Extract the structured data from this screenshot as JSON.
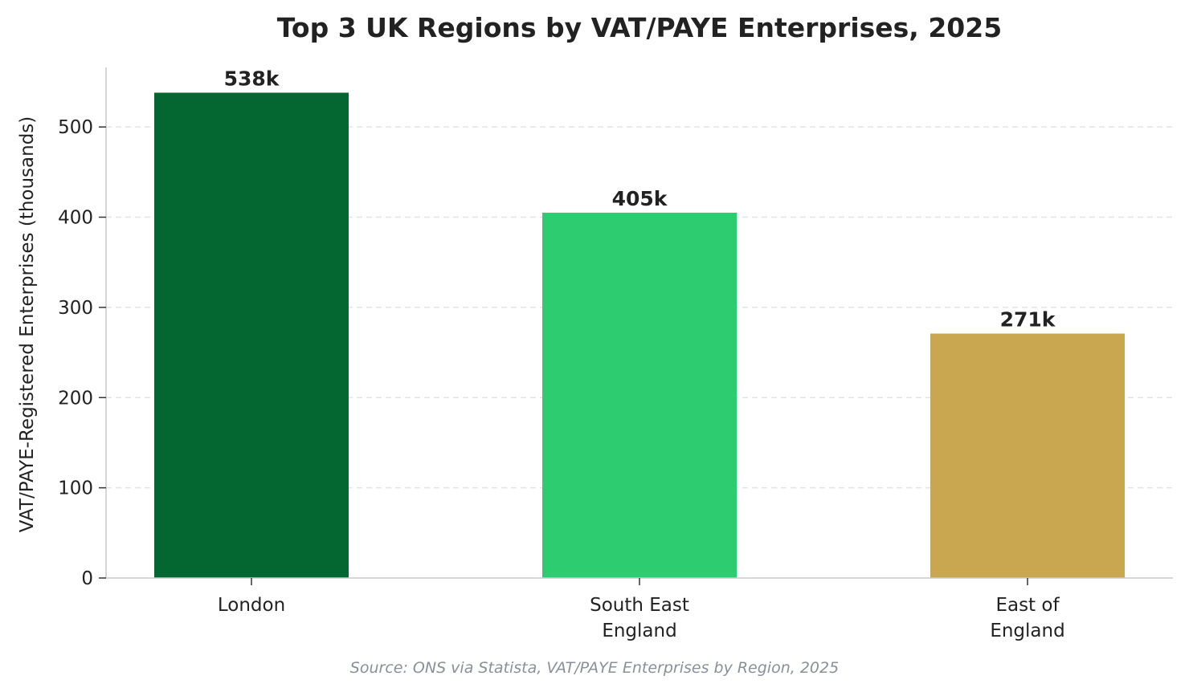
{
  "chart_data": {
    "type": "bar",
    "title": "Top 3 UK Regions by VAT/PAYE Enterprises, 2025",
    "xlabel": "",
    "ylabel": "VAT/PAYE-Registered Enterprises (thousands)",
    "categories": [
      [
        "London"
      ],
      [
        "South East",
        "England"
      ],
      [
        "East of",
        "England"
      ]
    ],
    "values": [
      538,
      405,
      271
    ],
    "data_labels": [
      "538k",
      "405k",
      "271k"
    ],
    "colors": [
      "#046631",
      "#2ecc71",
      "#c8a750"
    ],
    "ylim": [
      0,
      566
    ],
    "yticks": [
      0,
      100,
      200,
      300,
      400,
      500
    ],
    "grid": "horizontal-dashed",
    "legend": "none",
    "source": "Source: ONS via Statista, VAT/PAYE Enterprises by Region, 2025"
  }
}
